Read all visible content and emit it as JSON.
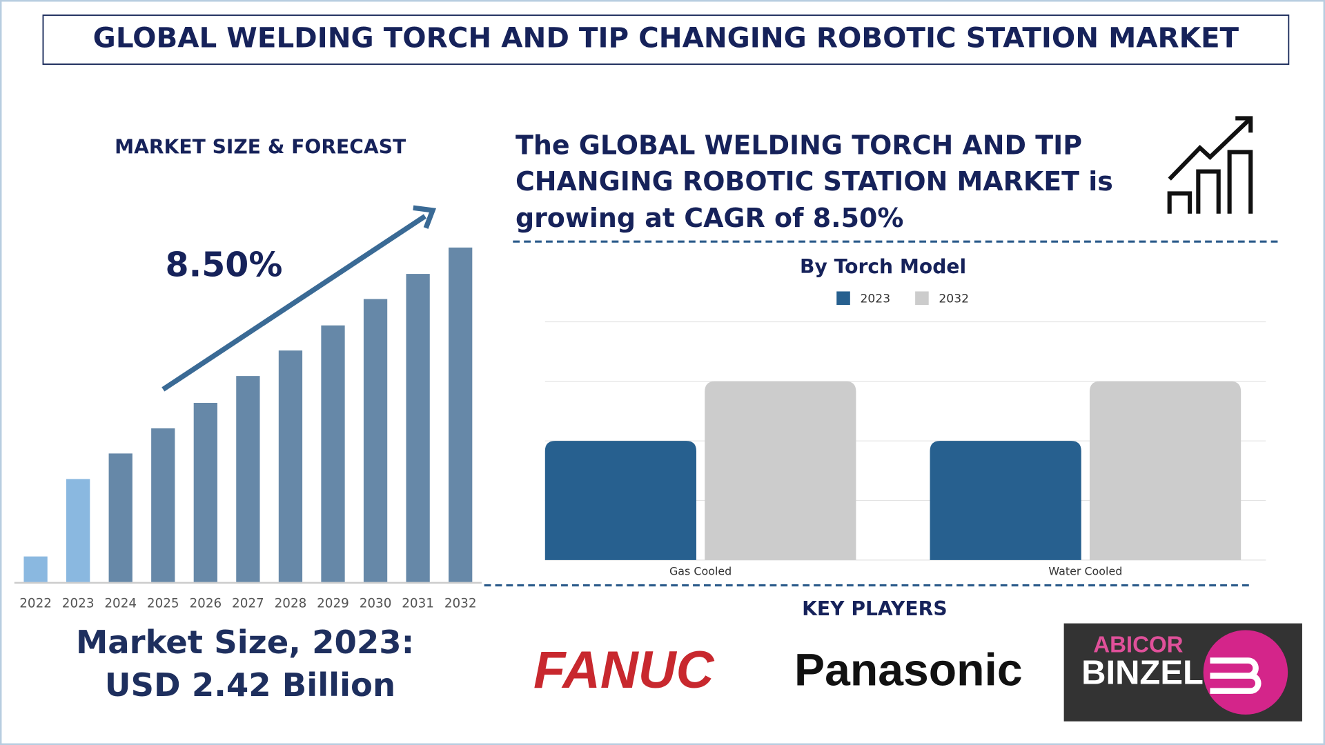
{
  "header": {
    "title": "GLOBAL WELDING TORCH AND TIP CHANGING ROBOTIC STATION MARKET"
  },
  "left": {
    "heading": "MARKET SIZE & FORECAST",
    "cagr": "8.50%",
    "market_size": [
      "Market Size, 2023:",
      "USD 2.42 Billion"
    ]
  },
  "headline": [
    "The GLOBAL WELDING TORCH AND TIP",
    "CHANGING ROBOTIC STATION MARKET is",
    "growing at CAGR of 8.50%"
  ],
  "chart_data": [
    {
      "type": "bar",
      "categories": [
        "2022",
        "2023",
        "2024",
        "2025",
        "2026",
        "2027",
        "2028",
        "2029",
        "2030",
        "2031",
        "2032"
      ],
      "values": [
        0.6,
        2.42,
        3.02,
        3.61,
        4.21,
        4.84,
        5.44,
        6.03,
        6.65,
        7.24,
        7.86
      ],
      "colors": [
        "#8ab8e0",
        "#8ab8e0",
        "#6688a8",
        "#6688a8",
        "#6688a8",
        "#6688a8",
        "#6688a8",
        "#6688a8",
        "#6688a8",
        "#6688a8",
        "#6688a8"
      ],
      "ylim": [
        0,
        8
      ]
    },
    {
      "type": "grouped-bar",
      "title": "By Torch Model",
      "categories": [
        "Gas Cooled",
        "Water Cooled"
      ],
      "series": [
        {
          "name": "2023",
          "color": "#27608f",
          "values": [
            2,
            2
          ]
        },
        {
          "name": "2032",
          "color": "#cccccc",
          "values": [
            3,
            3
          ]
        }
      ],
      "ylim": [
        0,
        4
      ],
      "yticks": [
        0,
        1,
        2,
        3,
        4
      ],
      "grid": true
    }
  ],
  "key_players": {
    "heading": "KEY PLAYERS",
    "logos": [
      "FANUC",
      "Panasonic",
      "ABICOR",
      "BINZEL"
    ]
  }
}
